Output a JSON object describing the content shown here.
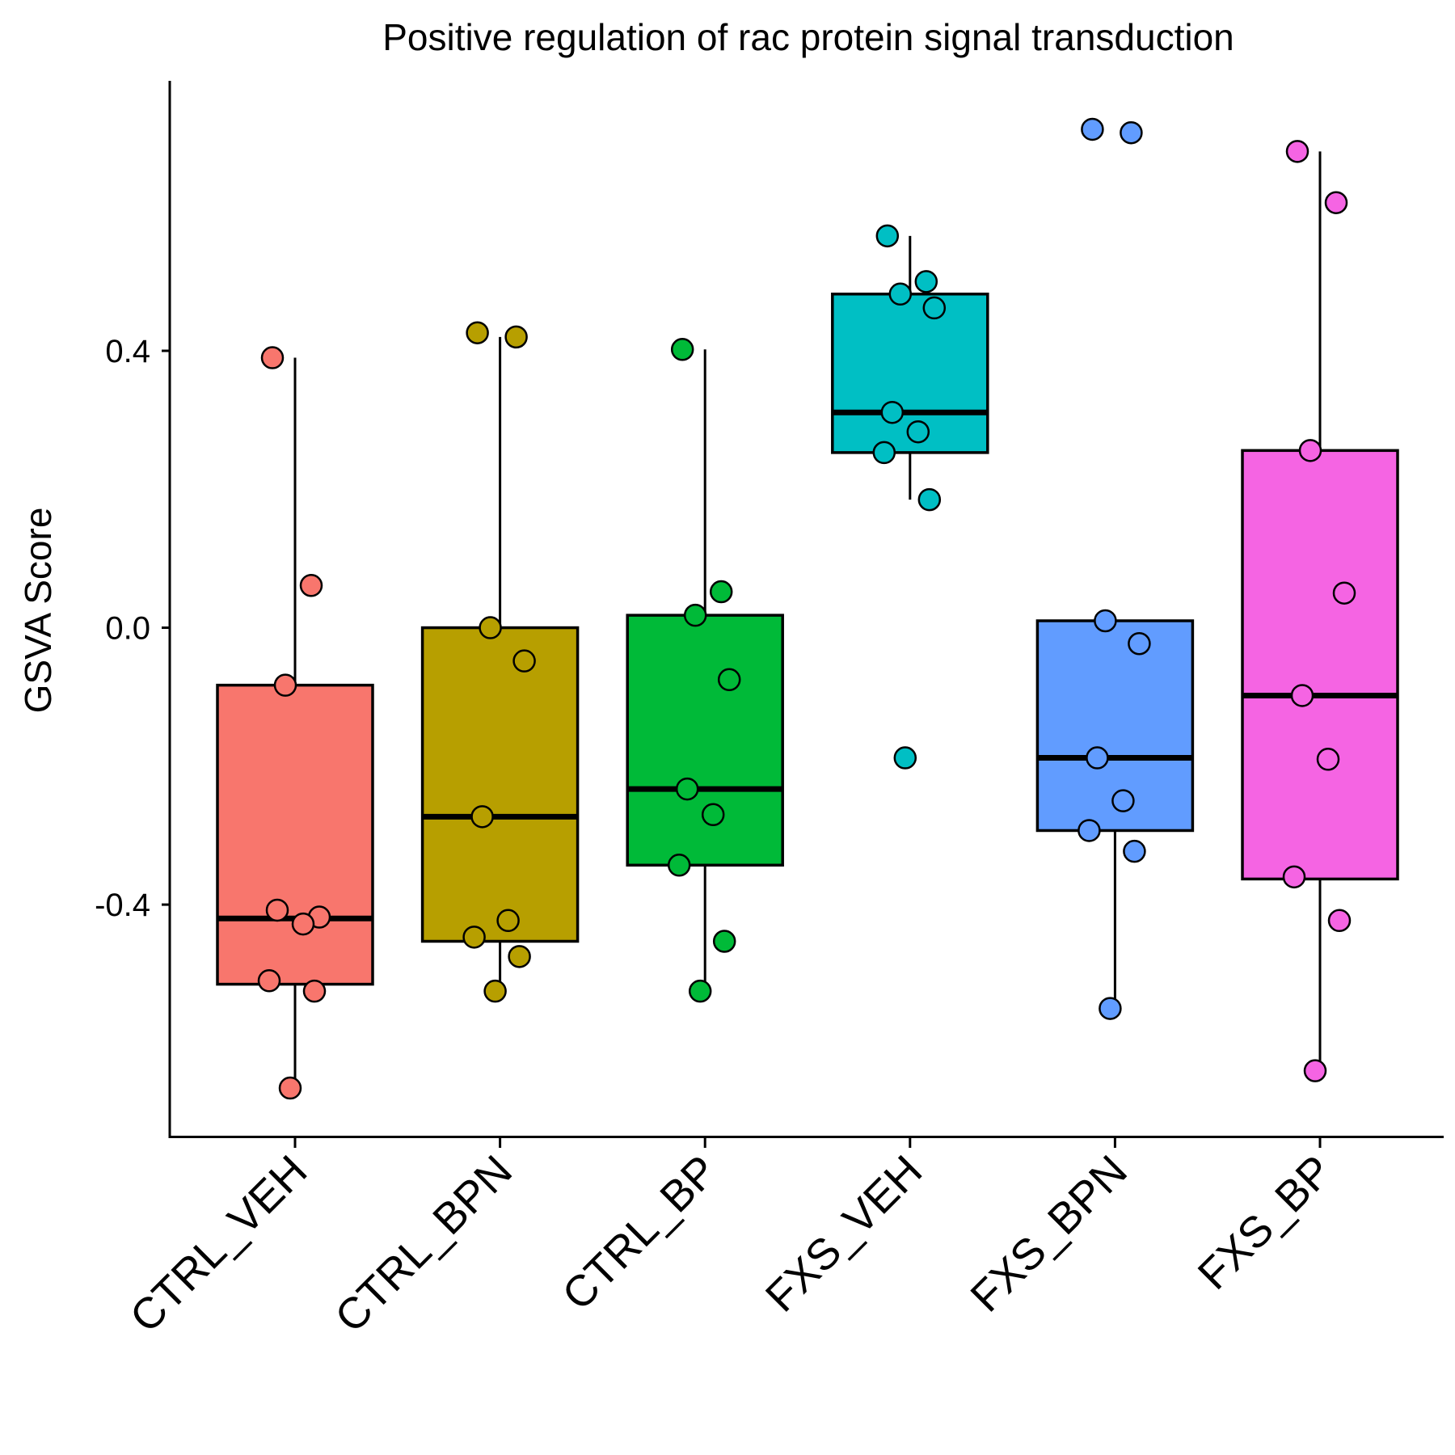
{
  "chart_data": {
    "type": "box",
    "title": "Positive regulation of rac protein signal transduction",
    "ylabel": "GSVA Score",
    "xlabel": "",
    "ylim": [
      -0.735,
      0.79
    ],
    "yticks": [
      {
        "value": 0.4,
        "label": "0.4"
      },
      {
        "value": 0.0,
        "label": "0.0"
      },
      {
        "value": -0.4,
        "label": "-0.4"
      }
    ],
    "grid": false,
    "legend": "none",
    "categories": [
      "CTRL_VEH",
      "CTRL_BPN",
      "CTRL_BP",
      "FXS_VEH",
      "FXS_BPN",
      "FXS_BP"
    ],
    "colors": [
      "#F8766D",
      "#B79F00",
      "#00BA38",
      "#00BFC4",
      "#619CFF",
      "#F564E3"
    ],
    "boxes": [
      {
        "group": "CTRL_VEH",
        "whisker_low": -0.665,
        "q1": -0.515,
        "median": -0.42,
        "q3": -0.083,
        "whisker_high": 0.39
      },
      {
        "group": "CTRL_BPN",
        "whisker_low": -0.525,
        "q1": -0.453,
        "median": -0.273,
        "q3": 0.0,
        "whisker_high": 0.42
      },
      {
        "group": "CTRL_BP",
        "whisker_low": -0.525,
        "q1": -0.343,
        "median": -0.233,
        "q3": 0.018,
        "whisker_high": 0.402
      },
      {
        "group": "FXS_VEH",
        "whisker_low": 0.185,
        "q1": 0.253,
        "median": 0.311,
        "q3": 0.482,
        "whisker_high": 0.566
      },
      {
        "group": "FXS_BPN",
        "whisker_low": -0.55,
        "q1": -0.293,
        "median": -0.188,
        "q3": 0.01,
        "whisker_high": 0.01
      },
      {
        "group": "FXS_BP",
        "whisker_low": -0.64,
        "q1": -0.363,
        "median": -0.098,
        "q3": 0.256,
        "whisker_high": 0.688
      }
    ],
    "points": [
      {
        "group": "CTRL_VEH",
        "y": [
          0.39,
          0.061,
          -0.083,
          -0.418,
          -0.408,
          -0.428,
          -0.51,
          -0.525,
          -0.665
        ]
      },
      {
        "group": "CTRL_BPN",
        "y": [
          0.426,
          0.42,
          0.0,
          -0.048,
          -0.273,
          -0.423,
          -0.447,
          -0.475,
          -0.525
        ]
      },
      {
        "group": "CTRL_BP",
        "y": [
          0.402,
          0.052,
          0.018,
          -0.075,
          -0.233,
          -0.27,
          -0.343,
          -0.453,
          -0.525
        ]
      },
      {
        "group": "FXS_VEH",
        "y": [
          0.566,
          0.5,
          0.482,
          0.462,
          0.311,
          0.283,
          0.253,
          0.185,
          -0.188
        ]
      },
      {
        "group": "FXS_BPN",
        "y": [
          0.72,
          0.715,
          0.01,
          -0.023,
          -0.188,
          -0.25,
          -0.293,
          -0.323,
          -0.55
        ]
      },
      {
        "group": "FXS_BP",
        "y": [
          0.688,
          0.614,
          0.256,
          0.05,
          -0.098,
          -0.19,
          -0.36,
          -0.423,
          -0.64
        ]
      }
    ]
  }
}
